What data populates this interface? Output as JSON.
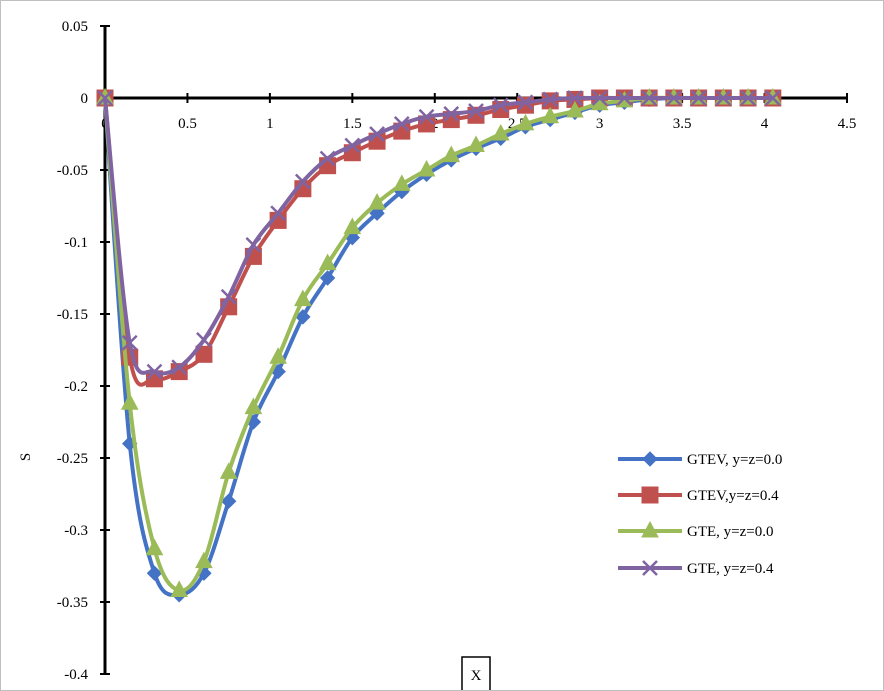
{
  "chart_data": {
    "type": "line",
    "title": "",
    "xlabel": "X",
    "ylabel": "S",
    "xlim": [
      0,
      4.5
    ],
    "ylim": [
      -0.4,
      0.05
    ],
    "x_ticks": [
      0,
      0.5,
      1,
      1.5,
      2,
      2.5,
      3,
      3.5,
      4,
      4.5
    ],
    "x_tick_labels": [
      "0",
      "0.5",
      "1",
      "1.5",
      "2",
      "2.5",
      "3",
      "3.5",
      "4",
      "4.5"
    ],
    "y_ticks": [
      0.05,
      0,
      -0.05,
      -0.1,
      -0.15,
      -0.2,
      -0.25,
      -0.3,
      -0.35,
      -0.4
    ],
    "y_tick_labels": [
      "0.05",
      "0",
      "-0.05",
      "-0.1",
      "-0.15",
      "-0.2",
      "-0.25",
      "-0.3",
      "-0.35",
      "-0.4"
    ],
    "grid": false,
    "legend_position": "lower-right",
    "series": [
      {
        "name": "GTEV, y=z=0.0",
        "color": "#4472C4",
        "marker": "diamond",
        "x": [
          0,
          0.15,
          0.3,
          0.45,
          0.6,
          0.75,
          0.9,
          1.05,
          1.2,
          1.35,
          1.5,
          1.65,
          1.8,
          1.95,
          2.1,
          2.25,
          2.4,
          2.55,
          2.7,
          2.85,
          3.0,
          3.15,
          3.3,
          3.45,
          3.6,
          3.75,
          3.9,
          4.05
        ],
        "y": [
          0,
          -0.24,
          -0.33,
          -0.345,
          -0.33,
          -0.28,
          -0.225,
          -0.19,
          -0.152,
          -0.125,
          -0.097,
          -0.08,
          -0.065,
          -0.053,
          -0.043,
          -0.035,
          -0.028,
          -0.02,
          -0.015,
          -0.01,
          -0.005,
          -0.003,
          -0.001,
          0,
          0,
          0,
          0,
          0
        ]
      },
      {
        "name": "GTEV,y=z=0.4",
        "color": "#C0504D",
        "marker": "square",
        "x": [
          0,
          0.15,
          0.3,
          0.45,
          0.6,
          0.75,
          0.9,
          1.05,
          1.2,
          1.35,
          1.5,
          1.65,
          1.8,
          1.95,
          2.1,
          2.25,
          2.4,
          2.55,
          2.7,
          2.85,
          3.0,
          3.15,
          3.3,
          3.45,
          3.6,
          3.75,
          3.9,
          4.05
        ],
        "y": [
          0,
          -0.18,
          -0.195,
          -0.19,
          -0.178,
          -0.145,
          -0.11,
          -0.085,
          -0.063,
          -0.047,
          -0.038,
          -0.03,
          -0.023,
          -0.018,
          -0.015,
          -0.012,
          -0.008,
          -0.005,
          -0.002,
          -0.001,
          0,
          0,
          0,
          0,
          0,
          0,
          0,
          0
        ]
      },
      {
        "name": "GTE, y=z=0.0",
        "color": "#9BBB59",
        "marker": "triangle",
        "x": [
          0,
          0.15,
          0.3,
          0.45,
          0.6,
          0.75,
          0.9,
          1.05,
          1.2,
          1.35,
          1.5,
          1.65,
          1.8,
          1.95,
          2.1,
          2.25,
          2.4,
          2.55,
          2.7,
          2.85,
          3.0,
          3.15,
          3.3,
          3.45,
          3.6,
          3.75,
          3.9,
          4.05
        ],
        "y": [
          0,
          -0.212,
          -0.313,
          -0.342,
          -0.322,
          -0.26,
          -0.215,
          -0.18,
          -0.14,
          -0.115,
          -0.09,
          -0.073,
          -0.06,
          -0.05,
          -0.04,
          -0.033,
          -0.025,
          -0.018,
          -0.013,
          -0.009,
          -0.004,
          -0.002,
          0,
          0,
          0,
          0,
          0,
          0
        ]
      },
      {
        "name": "GTE, y=z=0.4",
        "color": "#8064A2",
        "marker": "x",
        "x": [
          0,
          0.15,
          0.3,
          0.45,
          0.6,
          0.75,
          0.9,
          1.05,
          1.2,
          1.35,
          1.5,
          1.65,
          1.8,
          1.95,
          2.1,
          2.25,
          2.4,
          2.55,
          2.7,
          2.85,
          3.0,
          3.15,
          3.3,
          3.45,
          3.6,
          3.75,
          3.9,
          4.05
        ],
        "y": [
          0,
          -0.17,
          -0.19,
          -0.187,
          -0.168,
          -0.138,
          -0.102,
          -0.08,
          -0.058,
          -0.042,
          -0.033,
          -0.025,
          -0.018,
          -0.013,
          -0.011,
          -0.009,
          -0.005,
          -0.003,
          -0.001,
          0,
          0,
          0,
          0,
          0,
          0,
          0,
          0,
          0
        ]
      }
    ]
  }
}
